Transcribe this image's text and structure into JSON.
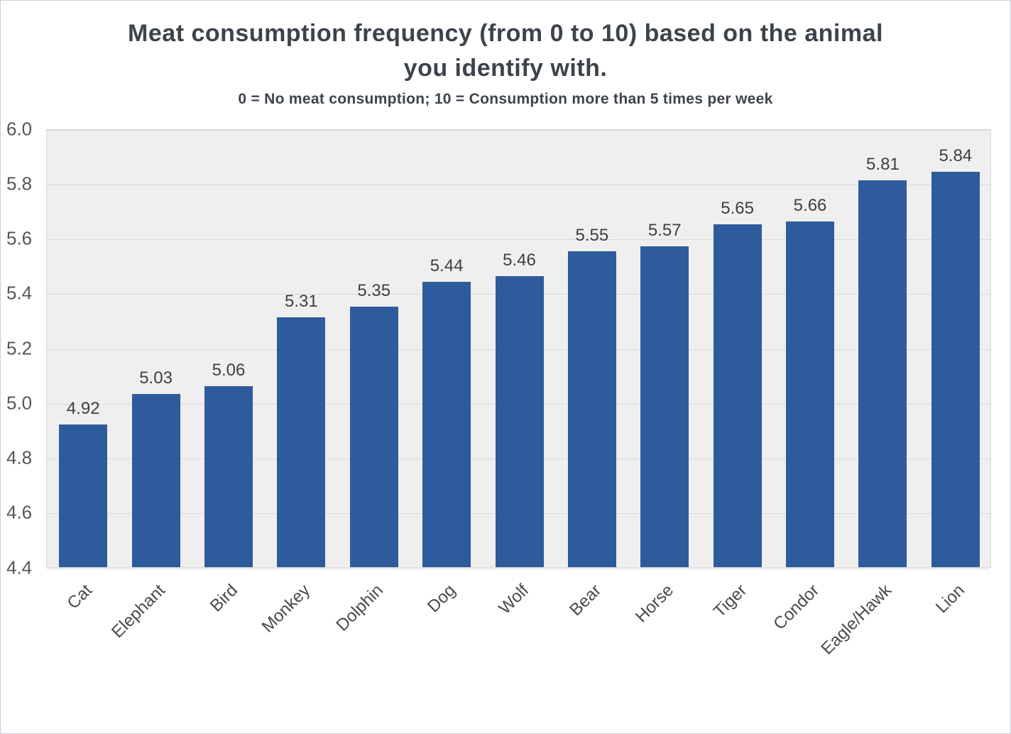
{
  "chart_data": {
    "type": "bar",
    "title": "Meat consumption frequency (from 0 to 10) based on the animal you identify with.",
    "subtitle": "0 = No meat consumption; 10 = Consumption more than 5 times per week",
    "categories": [
      "Cat",
      "Elephant",
      "Bird",
      "Monkey",
      "Dolphin",
      "Dog",
      "Wolf",
      "Bear",
      "Horse",
      "Tiger",
      "Condor",
      "Eagle/Hawk",
      "Lion"
    ],
    "values": [
      4.92,
      5.03,
      5.06,
      5.31,
      5.35,
      5.44,
      5.46,
      5.55,
      5.57,
      5.65,
      5.66,
      5.81,
      5.84
    ],
    "value_labels": [
      "4.92",
      "5.03",
      "5.06",
      "5.31",
      "5.35",
      "5.44",
      "5.46",
      "5.55",
      "5.57",
      "5.65",
      "5.66",
      "5.81",
      "5.84"
    ],
    "xlabel": "",
    "ylabel": "",
    "ylim": [
      4.4,
      6.0
    ],
    "yticks": [
      4.4,
      4.6,
      4.8,
      5.0,
      5.2,
      5.4,
      5.6,
      5.8,
      6.0
    ],
    "grid": "horizontal",
    "legend": "none",
    "bar_color": "#2e5b9c",
    "plot_background": "#efefef",
    "gridline_color": "#d9d9d9",
    "title_color": "#3d434b",
    "tick_label_color": "#575757"
  }
}
